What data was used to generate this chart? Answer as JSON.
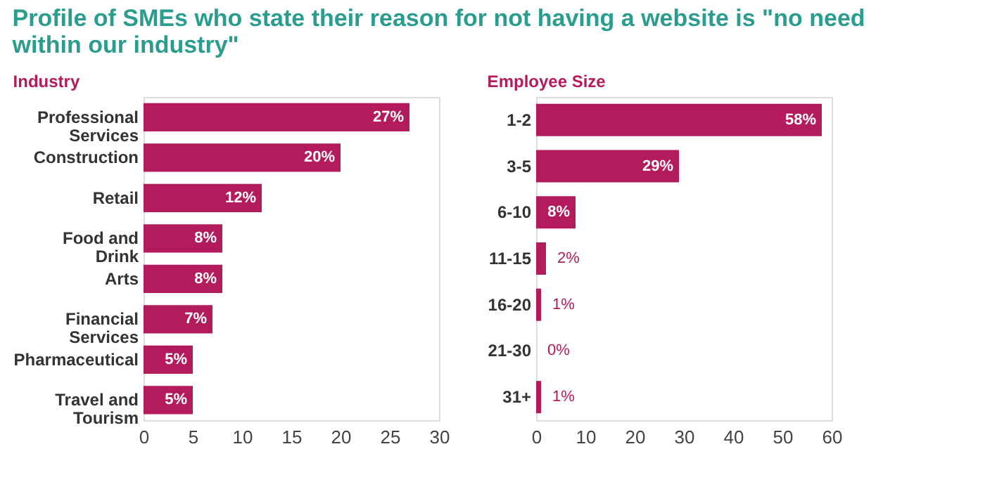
{
  "chart_data": [
    {
      "type": "bar",
      "orientation": "horizontal",
      "title": "Profile of SMEs who state their reason for not having a website is \"no need within our industry\"",
      "subtitle": "Industry",
      "categories": [
        "Professional Services",
        "Construction",
        "Retail",
        "Food and Drink",
        "Arts",
        "Financial Services",
        "Pharmaceutical",
        "Travel and Tourism"
      ],
      "values": [
        27,
        20,
        12,
        8,
        8,
        7,
        5,
        5
      ],
      "color": "#b41b5c",
      "value_labels": [
        "27%",
        "20%",
        "12%",
        "8%",
        "8%",
        "7%",
        "5%",
        "5%"
      ],
      "xlim": [
        0,
        30
      ],
      "xticks": [
        0,
        5,
        10,
        15,
        20,
        25,
        30
      ],
      "grid": false
    },
    {
      "type": "bar",
      "orientation": "horizontal",
      "subtitle": "Employee Size",
      "categories": [
        "1-2",
        "3-5",
        "6-10",
        "11-15",
        "16-20",
        "21-30",
        "31+"
      ],
      "values": [
        58,
        29,
        8,
        2,
        1,
        0,
        1
      ],
      "color": "#b41b5c",
      "value_labels": [
        "58%",
        "29%",
        "8%",
        "2%",
        "1%",
        "0%",
        "1%"
      ],
      "xlim": [
        0,
        60
      ],
      "xticks": [
        0,
        10,
        20,
        30,
        40,
        50,
        60
      ],
      "grid": false
    }
  ]
}
